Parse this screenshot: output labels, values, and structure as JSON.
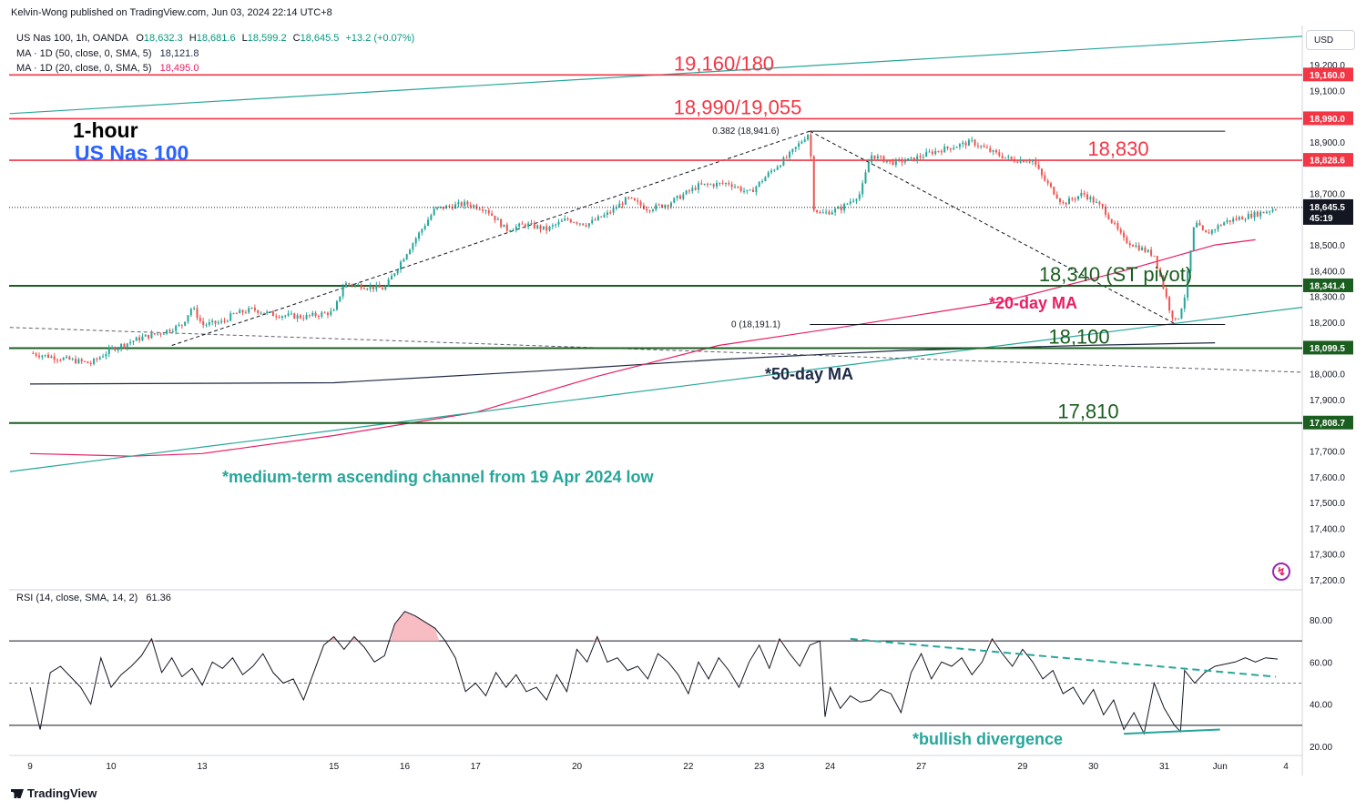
{
  "header": {
    "publisher": "Kelvin-Wong published on TradingView.com, Jun 03, 2024 22:14 UTC+8",
    "symbol": "US Nas 100, 1h, OANDA",
    "ohlc": {
      "o_label": "O",
      "o": "18,632.3",
      "h_label": "H",
      "h": "18,681.6",
      "l_label": "L",
      "l": "18,599.2",
      "c_label": "C",
      "c": "18,645.5",
      "chg": "+13.2 (+0.07%)"
    },
    "ma50_label": "MA · 1D (50, close, 0, SMA, 5)",
    "ma50_value": "18,121.8",
    "ma20_label": "MA · 1D (20, close, 0, SMA, 5)",
    "ma20_value": "18,495.0",
    "rsi_label": "RSI (14, close, SMA, 14, 2)",
    "rsi_value": "61.36"
  },
  "chart_title": {
    "line1": "1-hour",
    "line2": "US Nas 100"
  },
  "currency": "USD",
  "footer": {
    "brand": "TradingView"
  },
  "colors": {
    "resistance": "#f23645",
    "support": "#1b5e20",
    "channel": "#26a69a",
    "ma20": "#e91e63",
    "ma50": "#1e2a45",
    "up": "#26a69a",
    "down": "#ef5350"
  },
  "chart_data": [
    {
      "type": "candlestick",
      "series_name": "US Nas 100",
      "x_ticks": [
        "9",
        "10",
        "13",
        "15",
        "16",
        "17",
        "20",
        "22",
        "23",
        "24",
        "27",
        "29",
        "30",
        "31",
        "Jun",
        "4"
      ],
      "y_ticks": [
        "19,200.0",
        "19,100.0",
        "18,900.0",
        "18,700.0",
        "18,500.0",
        "18,400.0",
        "18,300.0",
        "18,200.0",
        "18,000.0",
        "17,900.0",
        "17,700.0",
        "17,600.0",
        "17,500.0",
        "17,400.0",
        "17,300.0",
        "17,200.0"
      ],
      "ylim": [
        17170,
        19400
      ],
      "close_path": [
        [
          0,
          18080
        ],
        [
          3,
          18060
        ],
        [
          6,
          18040
        ],
        [
          8,
          18095
        ],
        [
          11,
          18140
        ],
        [
          13,
          18160
        ],
        [
          15,
          18190
        ],
        [
          16,
          18260
        ],
        [
          17,
          18190
        ],
        [
          19,
          18200
        ],
        [
          20,
          18230
        ],
        [
          22,
          18250
        ],
        [
          24,
          18230
        ],
        [
          27,
          18220
        ],
        [
          30,
          18240
        ],
        [
          31,
          18350
        ],
        [
          33,
          18340
        ],
        [
          35,
          18330
        ],
        [
          37,
          18460
        ],
        [
          40,
          18640
        ],
        [
          43,
          18660
        ],
        [
          45,
          18640
        ],
        [
          47,
          18560
        ],
        [
          49,
          18580
        ],
        [
          51,
          18560
        ],
        [
          53,
          18600
        ],
        [
          55,
          18580
        ],
        [
          57,
          18620
        ],
        [
          59,
          18680
        ],
        [
          61,
          18640
        ],
        [
          63,
          18660
        ],
        [
          66,
          18730
        ],
        [
          69,
          18740
        ],
        [
          71,
          18700
        ],
        [
          73,
          18780
        ],
        [
          75,
          18850
        ],
        [
          77,
          18940
        ],
        [
          77.3,
          18650
        ],
        [
          78,
          18620
        ],
        [
          80,
          18640
        ],
        [
          82,
          18700
        ],
        [
          83,
          18850
        ],
        [
          85,
          18820
        ],
        [
          87,
          18830
        ],
        [
          89,
          18860
        ],
        [
          91,
          18880
        ],
        [
          93,
          18900
        ],
        [
          95,
          18860
        ],
        [
          97,
          18830
        ],
        [
          99,
          18830
        ],
        [
          100,
          18760
        ],
        [
          102,
          18660
        ],
        [
          104,
          18700
        ],
        [
          106,
          18640
        ],
        [
          108,
          18520
        ],
        [
          110,
          18480
        ],
        [
          111,
          18460
        ],
        [
          112.6,
          18240
        ],
        [
          113.2,
          18195
        ],
        [
          114,
          18300
        ],
        [
          115,
          18590
        ],
        [
          116,
          18540
        ],
        [
          118,
          18590
        ],
        [
          120,
          18610
        ],
        [
          122,
          18630
        ],
        [
          123.2,
          18645
        ]
      ],
      "annotations": {
        "fib_0382": "0.382 (18,941.6)",
        "fib_0": "0 (18,191.1)",
        "ma20_note": "*20-day MA",
        "ma50_note": "*50-day MA",
        "channel_note": "*medium-term ascending channel from 19 Apr 2024 low"
      },
      "levels": [
        {
          "label": "19,160/180",
          "tag": "19,160.0",
          "value": 19160,
          "role": "resistance"
        },
        {
          "label": "18,990/19,055",
          "tag": "18,990.0",
          "value": 18990,
          "role": "resistance"
        },
        {
          "label": "18,830",
          "tag": "18,828.6",
          "value": 18828.6,
          "role": "resistance"
        },
        {
          "label": "18,340 (ST pivot)",
          "tag": "18,341.4",
          "value": 18341.4,
          "role": "pivot"
        },
        {
          "label": "18,100",
          "tag": "18,099.5",
          "value": 18099.5,
          "role": "support"
        },
        {
          "label": "17,810",
          "tag": "17,808.7",
          "value": 17808.7,
          "role": "support"
        }
      ],
      "last_price": {
        "value": 18645.5,
        "tag": "18,645.5",
        "countdown": "45:19"
      },
      "moving_averages": {
        "ma20": [
          [
            0,
            17690
          ],
          [
            10,
            17680
          ],
          [
            17,
            17690
          ],
          [
            30,
            17760
          ],
          [
            44,
            17850
          ],
          [
            56,
            17990
          ],
          [
            68,
            18110
          ],
          [
            80,
            18180
          ],
          [
            96,
            18280
          ],
          [
            108,
            18400
          ],
          [
            117,
            18500
          ],
          [
            121,
            18520
          ]
        ],
        "ma50": [
          [
            0,
            17960
          ],
          [
            30,
            17965
          ],
          [
            50,
            18010
          ],
          [
            68,
            18055
          ],
          [
            86,
            18090
          ],
          [
            104,
            18110
          ],
          [
            117,
            18120
          ]
        ]
      }
    },
    {
      "type": "line",
      "series_name": "RSI",
      "y_ticks": [
        "80.00",
        "60.00",
        "40.00",
        "20.00"
      ],
      "ylim": [
        15,
        88
      ],
      "bands": [
        30,
        50,
        70
      ],
      "annotation": "*bullish divergence",
      "values": [
        [
          0,
          48
        ],
        [
          1,
          28
        ],
        [
          2,
          55
        ],
        [
          3,
          58
        ],
        [
          5,
          48
        ],
        [
          6,
          40
        ],
        [
          7,
          62
        ],
        [
          8,
          48
        ],
        [
          9,
          54
        ],
        [
          10,
          58
        ],
        [
          11,
          63
        ],
        [
          12,
          71
        ],
        [
          13,
          55
        ],
        [
          14,
          62
        ],
        [
          15,
          53
        ],
        [
          16,
          57
        ],
        [
          17,
          49
        ],
        [
          18,
          60
        ],
        [
          19,
          57
        ],
        [
          20,
          62
        ],
        [
          21,
          54
        ],
        [
          22,
          58
        ],
        [
          23,
          64
        ],
        [
          24,
          55
        ],
        [
          25,
          50
        ],
        [
          26,
          52
        ],
        [
          27,
          42
        ],
        [
          28,
          55
        ],
        [
          29,
          68
        ],
        [
          30,
          72
        ],
        [
          31,
          66
        ],
        [
          32,
          72
        ],
        [
          33,
          67
        ],
        [
          34,
          60
        ],
        [
          35,
          63
        ],
        [
          36,
          78
        ],
        [
          37,
          84
        ],
        [
          38,
          82
        ],
        [
          39,
          79
        ],
        [
          40,
          76
        ],
        [
          41,
          70
        ],
        [
          42,
          62
        ],
        [
          43,
          46
        ],
        [
          44,
          50
        ],
        [
          45,
          44
        ],
        [
          46,
          55
        ],
        [
          47,
          48
        ],
        [
          48,
          54
        ],
        [
          49,
          46
        ],
        [
          50,
          48
        ],
        [
          51,
          42
        ],
        [
          52,
          54
        ],
        [
          53,
          46
        ],
        [
          54,
          66
        ],
        [
          55,
          60
        ],
        [
          56,
          72
        ],
        [
          57,
          60
        ],
        [
          58,
          62
        ],
        [
          59,
          56
        ],
        [
          60,
          58
        ],
        [
          61,
          52
        ],
        [
          62,
          64
        ],
        [
          63,
          60
        ],
        [
          64,
          54
        ],
        [
          65,
          45
        ],
        [
          66,
          60
        ],
        [
          67,
          52
        ],
        [
          68,
          62
        ],
        [
          69,
          56
        ],
        [
          70,
          48
        ],
        [
          71,
          60
        ],
        [
          72,
          68
        ],
        [
          73,
          57
        ],
        [
          74,
          71
        ],
        [
          75,
          64
        ],
        [
          76,
          58
        ],
        [
          77,
          68
        ],
        [
          78,
          70
        ],
        [
          78.5,
          34
        ],
        [
          79,
          48
        ],
        [
          80,
          38
        ],
        [
          81,
          44
        ],
        [
          82,
          41
        ],
        [
          83,
          42
        ],
        [
          84,
          47
        ],
        [
          85,
          45
        ],
        [
          86,
          36
        ],
        [
          87,
          55
        ],
        [
          88,
          64
        ],
        [
          89,
          52
        ],
        [
          90,
          60
        ],
        [
          91,
          58
        ],
        [
          92,
          62
        ],
        [
          93,
          54
        ],
        [
          94,
          60
        ],
        [
          95,
          71
        ],
        [
          96,
          64
        ],
        [
          97,
          58
        ],
        [
          98,
          66
        ],
        [
          99,
          60
        ],
        [
          100,
          52
        ],
        [
          101,
          56
        ],
        [
          102,
          45
        ],
        [
          103,
          48
        ],
        [
          104,
          40
        ],
        [
          105,
          47
        ],
        [
          106,
          35
        ],
        [
          107,
          42
        ],
        [
          108,
          28
        ],
        [
          109,
          36
        ],
        [
          110,
          26
        ],
        [
          111,
          50
        ],
        [
          112,
          38
        ],
        [
          113,
          30
        ],
        [
          113.6,
          27
        ],
        [
          114,
          56
        ],
        [
          115,
          50
        ],
        [
          116,
          55
        ],
        [
          117,
          58
        ],
        [
          118,
          59
        ],
        [
          119,
          60
        ],
        [
          120,
          62
        ],
        [
          121,
          60
        ],
        [
          122,
          62
        ],
        [
          123.2,
          61.4
        ]
      ]
    }
  ]
}
